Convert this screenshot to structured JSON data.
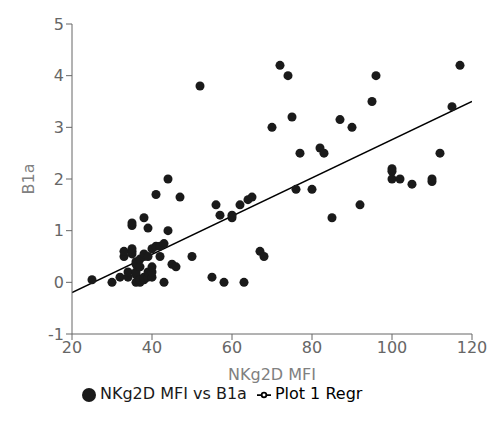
{
  "chart_data": {
    "type": "scatter",
    "xlabel": "NKg2D MFI",
    "ylabel": "B1a",
    "xlim": [
      20,
      120
    ],
    "ylim": [
      -1,
      5
    ],
    "xticks": [
      20,
      40,
      60,
      80,
      100,
      120
    ],
    "yticks": [
      -1,
      0,
      1,
      2,
      3,
      4,
      5
    ],
    "grid": false,
    "legend": "bottom",
    "series": [
      {
        "name": "NKg2D MFI vs B1a",
        "type": "scatter",
        "color": "#1a1a1a",
        "marker": "circle",
        "x": [
          25,
          30,
          32,
          33,
          33,
          34,
          34,
          35,
          35,
          35,
          35,
          35,
          36,
          36,
          36,
          36,
          36,
          37,
          37,
          37,
          37,
          38,
          38,
          38,
          38,
          38,
          39,
          39,
          39,
          39,
          40,
          40,
          40,
          40,
          41,
          41,
          42,
          42,
          43,
          43,
          44,
          44,
          45,
          46,
          47,
          50,
          52,
          55,
          56,
          57,
          58,
          60,
          60,
          62,
          63,
          64,
          65,
          67,
          68,
          70,
          72,
          74,
          75,
          76,
          77,
          80,
          82,
          83,
          85,
          87,
          90,
          92,
          95,
          96,
          100,
          100,
          100,
          102,
          105,
          110,
          110,
          112,
          115,
          117
        ],
        "values": [
          0.05,
          0.0,
          0.1,
          0.5,
          0.6,
          0.1,
          0.2,
          0.55,
          0.6,
          0.65,
          1.1,
          1.15,
          0.0,
          0.15,
          0.2,
          0.35,
          0.4,
          0.0,
          0.05,
          0.3,
          0.45,
          0.05,
          0.1,
          0.5,
          0.55,
          1.25,
          0.1,
          0.2,
          0.5,
          1.05,
          0.1,
          0.2,
          0.3,
          0.65,
          0.7,
          1.7,
          0.5,
          0.7,
          0.0,
          0.75,
          1.0,
          2.0,
          0.35,
          0.3,
          1.65,
          0.5,
          3.8,
          0.1,
          1.5,
          1.3,
          0.0,
          1.25,
          1.3,
          1.5,
          0.0,
          1.6,
          1.65,
          0.6,
          0.5,
          3.0,
          4.2,
          4.0,
          3.2,
          1.8,
          2.5,
          1.8,
          2.6,
          2.5,
          1.25,
          3.15,
          3.0,
          1.5,
          3.5,
          4.0,
          2.2,
          2.0,
          2.15,
          2.0,
          1.9,
          1.95,
          2.0,
          2.5,
          3.4,
          4.2
        ]
      },
      {
        "name": "Plot 1 Regr",
        "type": "line",
        "color": "#000000",
        "x": [
          20,
          120
        ],
        "values": [
          -0.2,
          3.5
        ]
      }
    ]
  }
}
